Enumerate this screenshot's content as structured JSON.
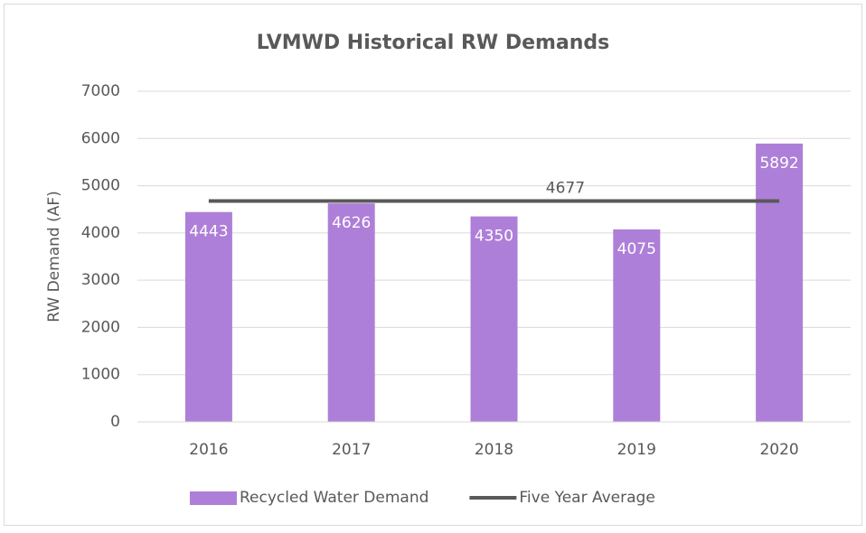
{
  "chart_data": {
    "type": "bar",
    "title": "LVMWD Historical RW Demands",
    "y_label": "RW Demand (AF)",
    "categories": [
      "2016",
      "2017",
      "2018",
      "2019",
      "2020"
    ],
    "series": [
      {
        "name": "Recycled Water Demand",
        "color": "#ae7fd8",
        "type": "bar",
        "values": [
          4443,
          4626,
          4350,
          4075,
          5892
        ]
      },
      {
        "name": "Five Year Average",
        "color": "#595959",
        "type": "line",
        "values": [
          4677,
          4677,
          4677,
          4677,
          4677
        ]
      }
    ],
    "ylim": [
      0,
      7000
    ],
    "yticks": [
      0,
      1000,
      2000,
      3000,
      4000,
      5000,
      6000,
      7000
    ],
    "grid": true,
    "legend": "bottom"
  }
}
